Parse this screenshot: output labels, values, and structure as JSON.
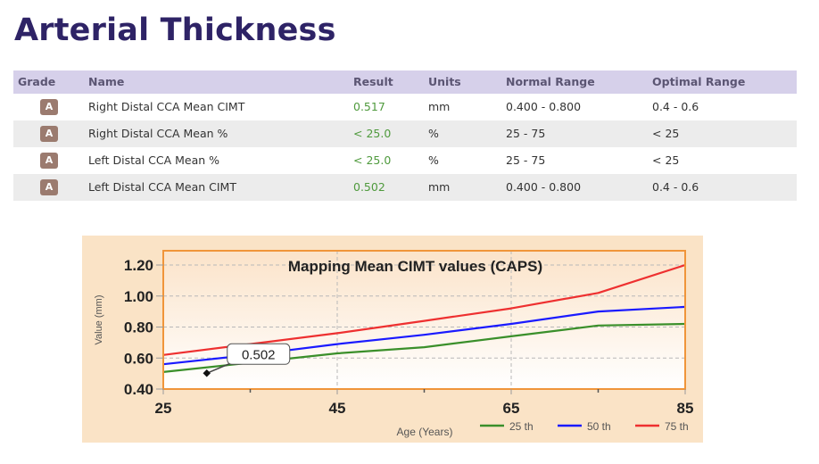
{
  "page": {
    "title": "Arterial Thickness"
  },
  "table": {
    "headers": {
      "grade": "Grade",
      "name": "Name",
      "result": "Result",
      "units": "Units",
      "normal_range": "Normal Range",
      "optimal_range": "Optimal Range"
    },
    "rows": [
      {
        "grade": "A",
        "name": "Right Distal CCA Mean CIMT",
        "result": "0.517",
        "units": "mm",
        "normal_range": "0.400 - 0.800",
        "optimal_range": "0.4 - 0.6"
      },
      {
        "grade": "A",
        "name": "Right Distal CCA Mean %",
        "result": "< 25.0",
        "units": "%",
        "normal_range": "25 - 75",
        "optimal_range": "< 25"
      },
      {
        "grade": "A",
        "name": "Left Distal CCA Mean %",
        "result": "< 25.0",
        "units": "%",
        "normal_range": "25 - 75",
        "optimal_range": "< 25"
      },
      {
        "grade": "A",
        "name": "Left Distal CCA Mean CIMT",
        "result": "0.502",
        "units": "mm",
        "normal_range": "0.400 - 0.800",
        "optimal_range": "0.4 - 0.6"
      }
    ]
  },
  "colors": {
    "title": "#2e2366",
    "header_bg": "#d6d0ea",
    "badge": "#9b7b6f",
    "result_green": "#4f9a3d",
    "chart_bg": "#fae3c6",
    "frame": "#f0953a"
  },
  "chart_data": {
    "type": "line",
    "title": "Mapping Mean CIMT values (CAPS)",
    "xlabel": "Age (Years)",
    "ylabel": "Value (mm)",
    "xlim": [
      25,
      85
    ],
    "ylim": [
      0.4,
      1.29
    ],
    "x_ticks": [
      25,
      45,
      65,
      85
    ],
    "x_tick_labels": [
      "25",
      "45",
      "65",
      "85"
    ],
    "x_minor_ticks": [
      35,
      55,
      75
    ],
    "y_ticks": [
      0.4,
      0.6,
      0.8,
      1.0,
      1.2
    ],
    "y_tick_labels": [
      "0.40",
      "0.60",
      "0.80",
      "1.00",
      "1.20"
    ],
    "grid": true,
    "legend_position": "bottom-right",
    "x": [
      25,
      35,
      45,
      55,
      65,
      75,
      85
    ],
    "series": [
      {
        "name": "25 th",
        "color": "#3a8f2a",
        "values": [
          0.51,
          0.57,
          0.63,
          0.67,
          0.74,
          0.81,
          0.82
        ]
      },
      {
        "name": "50 th",
        "color": "#1a1aff",
        "values": [
          0.56,
          0.62,
          0.69,
          0.75,
          0.82,
          0.9,
          0.93
        ]
      },
      {
        "name": "75 th",
        "color": "#ee3030",
        "values": [
          0.62,
          0.69,
          0.76,
          0.84,
          0.92,
          1.02,
          1.2
        ]
      }
    ],
    "annotation": {
      "label": "0.502",
      "x": 30,
      "y": 0.502
    }
  }
}
